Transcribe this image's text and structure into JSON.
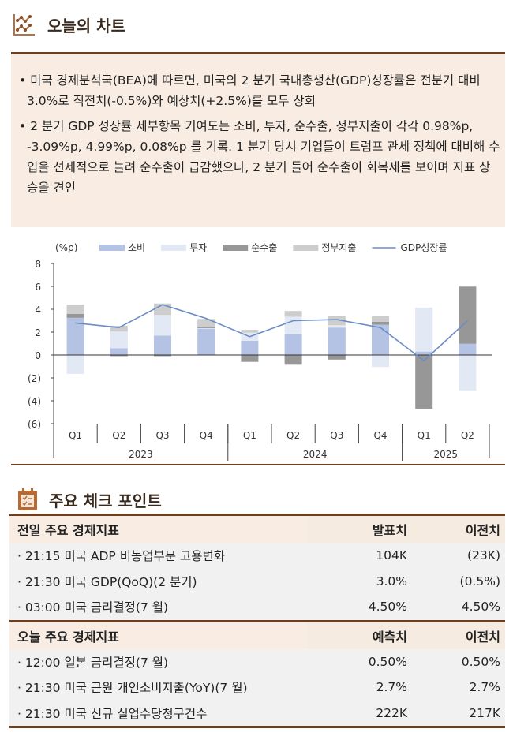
{
  "section1": {
    "title": "오늘의 차트",
    "icon": "line-chart-icon"
  },
  "bullets": [
    "• 미국 경제분석국(BEA)에 따르면, 미국의 2 분기 국내총생산(GDP)성장률은 전분기 대비 3.0%로 직전치(-0.5%)와 예상치(+2.5%)를 모두 상회",
    "• 2 분기 GDP 성장률 세부항목 기여도는 소비, 투자, 순수출, 정부지출이 각각 0.98%p, -3.09%p, 4.99%p, 0.08%p 를 기록. 1 분기 당시 기업들이 트럼프 관세 정책에 대비해 수입을 선제적으로 늘려 순수출이 급감했으나, 2 분기 들어 순수출이 회복세를 보이며 지표 상승을 견인"
  ],
  "chart_data": {
    "type": "bar",
    "stacked": true,
    "unit_label": "(%p)",
    "categories": [
      "Q1",
      "Q2",
      "Q3",
      "Q4",
      "Q1",
      "Q2",
      "Q3",
      "Q4",
      "Q1",
      "Q2"
    ],
    "years": [
      {
        "label": "2023",
        "span": 4
      },
      {
        "label": "2024",
        "span": 4
      },
      {
        "label": "2025",
        "span": 2
      }
    ],
    "ylim": [
      -6,
      8
    ],
    "yticks": [
      "8",
      "6",
      "4",
      "2",
      "0",
      "(2)",
      "(4)",
      "(6)"
    ],
    "ytick_values": [
      8,
      6,
      4,
      2,
      0,
      -2,
      -4,
      -6
    ],
    "legend_position": "top",
    "series": [
      {
        "name": "소비",
        "type": "bar",
        "color": "#b4c3e3",
        "values": [
          3.25,
          0.6,
          1.7,
          2.3,
          1.25,
          1.85,
          2.4,
          2.65,
          0.3,
          0.98
        ]
      },
      {
        "name": "투자",
        "type": "bar",
        "color": "#e3e8f5",
        "values": [
          -1.65,
          1.45,
          1.8,
          0.05,
          0.7,
          1.5,
          0.2,
          -1.05,
          3.85,
          -3.09
        ]
      },
      {
        "name": "순수출",
        "type": "bar",
        "color": "#979797",
        "values": [
          0.35,
          -0.1,
          -0.1,
          0.15,
          -0.6,
          -0.85,
          -0.4,
          0.25,
          -4.7,
          4.99
        ]
      },
      {
        "name": "정부지출",
        "type": "bar",
        "color": "#cdcdcd",
        "values": [
          0.8,
          0.5,
          1.0,
          0.65,
          0.25,
          0.5,
          0.85,
          0.5,
          -0.05,
          0.08
        ]
      },
      {
        "name": "GDP성장률",
        "type": "line",
        "color": "#6a8cc7",
        "values": [
          2.8,
          2.4,
          4.4,
          3.2,
          1.6,
          3.0,
          3.1,
          2.4,
          -0.5,
          3.0
        ]
      }
    ]
  },
  "section2": {
    "title": "주요 체크 포인트",
    "icon": "checklist-icon"
  },
  "tables": [
    {
      "header": [
        "전일 주요 경제지표",
        "발표치",
        "이전치"
      ],
      "rows": [
        [
          "· 21:15 미국 ADP 비농업부문 고용변화",
          "104K",
          "(23K)"
        ],
        [
          "· 21:30 미국 GDP(QoQ)(2 분기)",
          "3.0%",
          "(0.5%)"
        ],
        [
          "· 03:00 미국 금리결정(7 월)",
          "4.50%",
          "4.50%"
        ]
      ]
    },
    {
      "header": [
        "오늘 주요 경제지표",
        "예측치",
        "이전치"
      ],
      "rows": [
        [
          "· 12:00 일본 금리결정(7 월)",
          "0.50%",
          "0.50%"
        ],
        [
          "· 21:30 미국 근원 개인소비지출(YoY)(7 월)",
          "2.7%",
          "2.7%"
        ],
        [
          "· 21:30 미국 신규 실업수당청구건수",
          "222K",
          "217K"
        ]
      ]
    }
  ]
}
